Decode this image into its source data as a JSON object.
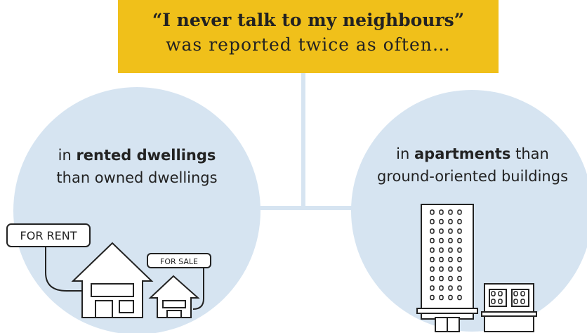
{
  "header": {
    "quote": "“I never talk to my neighbours”",
    "subtitle": "was reported twice as often…"
  },
  "nodes": [
    {
      "prefix": "in",
      "bold": "rented dwellings",
      "line2": "than owned dwellings"
    },
    {
      "prefix": "in",
      "bold": "apartments",
      "suffix": "than",
      "line2": "ground-oriented buildings"
    }
  ],
  "signs": [
    "FOR RENT",
    "FOR SALE"
  ]
}
